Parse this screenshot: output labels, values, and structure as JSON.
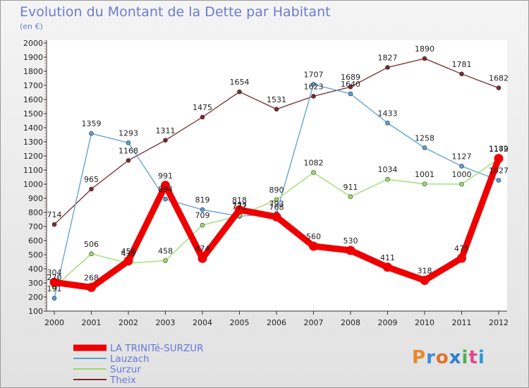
{
  "header": {
    "title": "Evolution du Montant de la Dette par Habitant",
    "subtitle": "(en €)"
  },
  "logo": {
    "text": "Proxiti",
    "colors": [
      "#e88a2a",
      "#3c8fd8",
      "#e0732a",
      "#2a7fd0",
      "#4caf50",
      "#e04a8a",
      "#2a9ad8"
    ]
  },
  "chart_data": {
    "type": "line",
    "title": "Evolution du Montant de la Dette par Habitant",
    "subtitle": "(en €)",
    "xlabel": "",
    "ylabel": "",
    "x": [
      "2000",
      "2001",
      "2002",
      "2003",
      "2004",
      "2005",
      "2006",
      "2007",
      "2008",
      "2009",
      "2010",
      "2011",
      "2012"
    ],
    "ylim": [
      100,
      2000
    ],
    "yticks": [
      100,
      200,
      300,
      400,
      500,
      600,
      700,
      800,
      900,
      1000,
      1100,
      1200,
      1300,
      1400,
      1500,
      1600,
      1700,
      1800,
      1900,
      2000
    ],
    "grid": false,
    "legend_position": "bottom-left",
    "series": [
      {
        "name": "LA TRINITé-SURZUR",
        "color": "#ee0000",
        "values": [
          304,
          268,
          456,
          991,
          474,
          818,
          768,
          560,
          530,
          411,
          318,
          475,
          1182
        ],
        "labels": [
          "304",
          "268",
          "456",
          "991",
          "474",
          "818",
          "768",
          "560",
          "530",
          "411",
          "318",
          "475",
          "1182"
        ]
      },
      {
        "name": "Lauzach",
        "color": "#5a9fd6",
        "values": [
          191,
          1359,
          1293,
          894,
          819,
          772,
          793,
          1707,
          1640,
          1433,
          1258,
          1127,
          1027
        ],
        "labels": [
          "191",
          "1359",
          "1293",
          "894",
          "819",
          "772",
          "793",
          "1707",
          "1640",
          "1433",
          "1258",
          "1127",
          "1027"
        ]
      },
      {
        "name": "Surzur",
        "color": "#99dd66",
        "values": [
          270,
          506,
          439,
          458,
          709,
          777,
          890,
          1082,
          911,
          1034,
          1001,
          1000,
          1179
        ],
        "labels": [
          "270",
          "506",
          "439",
          "458",
          "709",
          "777",
          "890",
          "1082",
          "911",
          "1034",
          "1001",
          "1000",
          "1179"
        ]
      },
      {
        "name": "Theix",
        "color": "#7a2a2a",
        "values": [
          714,
          965,
          1168,
          1311,
          1475,
          1654,
          1531,
          1623,
          1689,
          1827,
          1890,
          1781,
          1682
        ],
        "labels": [
          "714",
          "965",
          "1168",
          "1311",
          "1475",
          "1654",
          "1531",
          "1623",
          "1689",
          "1827",
          "1890",
          "1781",
          "1682"
        ]
      }
    ]
  }
}
